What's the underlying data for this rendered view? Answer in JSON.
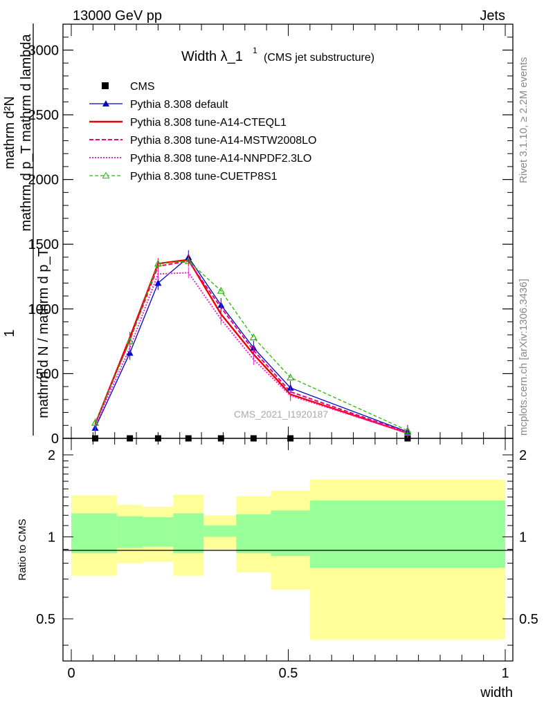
{
  "header": {
    "left": "13000 GeV pp",
    "right": "Jets"
  },
  "side_labels": {
    "rivet": "Rivet 3.1.10, ≥ 2.2M events",
    "mcplots": "mcplots.cern.ch [arXiv:1306.3436]"
  },
  "chart_data": {
    "type": "line",
    "title": "Width λ_1",
    "title_sup": "1",
    "subtitle": "(CMS jet substructure)",
    "watermark": "CMS_2021_I1920187",
    "ylabel_top": "1",
    "ylabel_num": "mathrm d²N",
    "ylabel_num_line2": "mathrm d p_T mathrm d lambda",
    "ylabel_den": "mathrm d N / mathrm d p_T",
    "xlabel": "width",
    "ratio_ylabel": "Ratio to CMS",
    "xlim": [
      0,
      1
    ],
    "ylim": [
      0,
      3200
    ],
    "ratio_ylim": [
      0.35,
      2.3
    ],
    "x_ticks": [
      "0",
      "0.5",
      "1"
    ],
    "y_ticks": [
      "0",
      "500",
      "1000",
      "1500",
      "2000",
      "2500",
      "3000"
    ],
    "ratio_ticks": [
      "0.5",
      "1",
      "2"
    ],
    "bin_edges": [
      0,
      0.105,
      0.165,
      0.235,
      0.305,
      0.38,
      0.46,
      0.55,
      1.0
    ],
    "x": [
      0.055,
      0.135,
      0.2,
      0.27,
      0.345,
      0.42,
      0.505,
      0.775
    ],
    "cms": [
      0,
      0,
      0,
      0,
      0,
      0,
      0,
      0
    ],
    "series": [
      {
        "name": "CMS",
        "kind": "data",
        "color": "#000000",
        "values": [
          0,
          0,
          0,
          0,
          0,
          0,
          0,
          0
        ]
      },
      {
        "name": "Pythia 8.308 default",
        "kind": "line",
        "color": "#0000cc",
        "dash": "",
        "width": 1.3,
        "marker": "triangle-filled",
        "values": [
          80,
          660,
          1200,
          1400,
          1030,
          700,
          390,
          50
        ]
      },
      {
        "name": "Pythia 8.308 tune-A14-CTEQL1",
        "kind": "line",
        "color": "#ee0000",
        "dash": "",
        "width": 2.4,
        "marker": "none",
        "values": [
          110,
          780,
          1350,
          1380,
          960,
          650,
          340,
          40
        ]
      },
      {
        "name": "Pythia 8.308 tune-A14-MSTW2008LO",
        "kind": "line",
        "color": "#ee0077",
        "dash": "6,3",
        "width": 2.0,
        "marker": "none",
        "values": [
          110,
          760,
          1330,
          1370,
          1010,
          680,
          360,
          45
        ]
      },
      {
        "name": "Pythia 8.308 tune-A14-NNPDF2.3LO",
        "kind": "line",
        "color": "#ee22cc",
        "dash": "2,2",
        "width": 2.0,
        "marker": "none",
        "values": [
          100,
          700,
          1270,
          1280,
          920,
          610,
          330,
          40
        ]
      },
      {
        "name": "Pythia 8.308 tune-CUETP8S1",
        "kind": "line",
        "color": "#22bb00",
        "dash": "5,3",
        "width": 1.3,
        "marker": "triangle-open",
        "values": [
          120,
          750,
          1350,
          1370,
          1140,
          780,
          470,
          60
        ]
      }
    ],
    "ratio_bands": {
      "yellow": [
        [
          0.72,
          1.42
        ],
        [
          0.8,
          1.31
        ],
        [
          0.81,
          1.29
        ],
        [
          0.72,
          1.43
        ],
        [
          0.9,
          1.2
        ],
        [
          0.74,
          1.41
        ],
        [
          0.64,
          1.48
        ],
        [
          0.42,
          1.62
        ]
      ],
      "green": [
        [
          0.87,
          1.22
        ],
        [
          0.91,
          1.19
        ],
        [
          0.92,
          1.18
        ],
        [
          0.87,
          1.22
        ],
        [
          1.0,
          1.1
        ],
        [
          0.87,
          1.21
        ],
        [
          0.85,
          1.25
        ],
        [
          0.77,
          1.36
        ]
      ]
    },
    "ratio_colors": {
      "yellow": "#ffff99",
      "green": "#99ff99"
    },
    "legend_position": "top-left"
  }
}
